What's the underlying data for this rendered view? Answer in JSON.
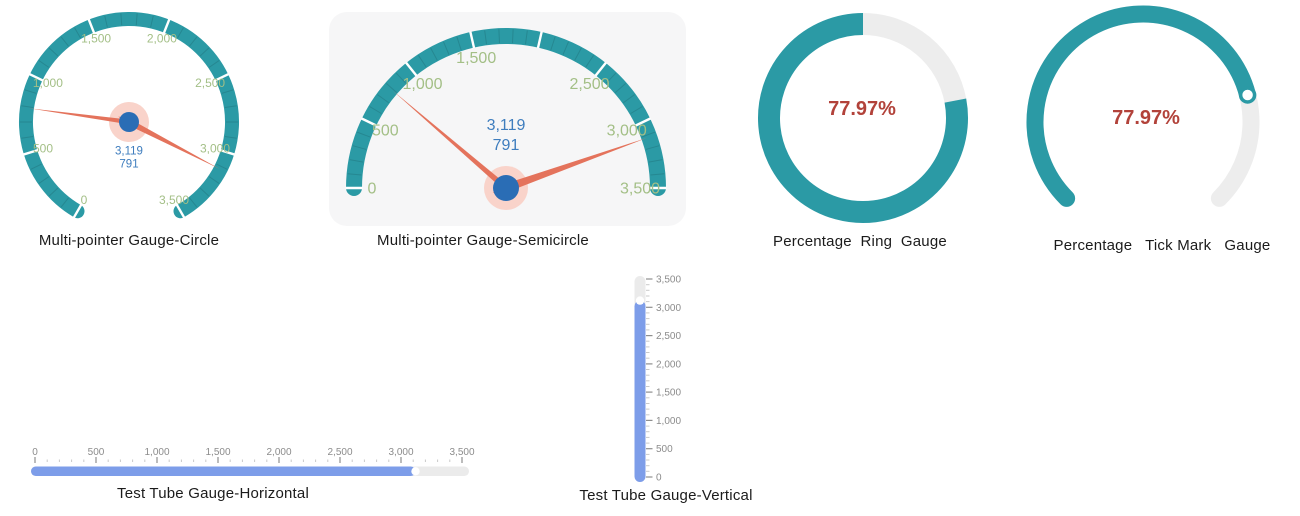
{
  "palette": {
    "teal": "#2B9AA5",
    "axis_label_green": "#A3BF86",
    "pointer_salmon": "#E4735C",
    "pointer_halo": "#F9D3CA",
    "knob_blue": "#2A6DB5",
    "value_blue": "#3E7DBE",
    "percent_red": "#B2423A",
    "tube_fill_blue": "#7D9DE9",
    "tube_track_gray": "#EBEBEB",
    "arc_rest_gray": "#EDEDED",
    "panel_gray": "#F6F6F7",
    "scale_label_gray": "#8C8C8C",
    "scale_major_tick_gray": "#8F8F8F",
    "scale_minor_tick_gray": "#C9C9C9",
    "band_split_white": "#FFFFFF",
    "title_color": "#1B1B1B"
  },
  "chart_data": [
    {
      "type": "gauge",
      "variant": "multi-pointer-circle",
      "title": "Multi-pointer Gauge-Circle",
      "min": 0,
      "max": 3500,
      "start_angle": 240,
      "end_angle": -60,
      "major_tick_step": 500,
      "minor_tick_step": 100,
      "axis_labels": [
        {
          "value": 0,
          "text": "0"
        },
        {
          "value": 500,
          "text": "500"
        },
        {
          "value": 1000,
          "text": "1,000"
        },
        {
          "value": 1500,
          "text": "1,500"
        },
        {
          "value": 2000,
          "text": "2,000"
        },
        {
          "value": 2500,
          "text": "2,500"
        },
        {
          "value": 3000,
          "text": "3,000"
        },
        {
          "value": 3500,
          "text": "3,500"
        }
      ],
      "pointer_values": [
        3119,
        791
      ],
      "center_value_lines": [
        "3,119",
        "791"
      ]
    },
    {
      "type": "gauge",
      "variant": "multi-pointer-semicircle",
      "title": "Multi-pointer Gauge-Semicircle",
      "min": 0,
      "max": 3500,
      "start_angle": 180,
      "end_angle": 0,
      "major_tick_step": 500,
      "minor_tick_step": 100,
      "axis_labels": [
        {
          "value": 0,
          "text": "0"
        },
        {
          "value": 500,
          "text": "500"
        },
        {
          "value": 1000,
          "text": "1,000"
        },
        {
          "value": 1500,
          "text": "1,500"
        },
        {
          "value": 2500,
          "text": "2,500"
        },
        {
          "value": 3000,
          "text": "3,000"
        },
        {
          "value": 3500,
          "text": "3,500"
        }
      ],
      "pointer_values": [
        3119,
        791
      ],
      "center_value_lines": [
        "3,119",
        "791"
      ]
    },
    {
      "type": "gauge",
      "variant": "percentage-ring",
      "title": "Percentage  Ring  Gauge",
      "value_percent": 77.97,
      "value_label": "77.97%",
      "remainder_percent": 22.03,
      "remainder_start": "top, clockwise"
    },
    {
      "type": "gauge",
      "variant": "percentage-tick-mark",
      "title": "Percentage   Tick Mark   Gauge",
      "value_percent": 77.97,
      "value_label": "77.97%",
      "start_angle": 225,
      "end_angle": -45,
      "marker": "white-dot-at-progress-end"
    },
    {
      "type": "gauge",
      "variant": "test-tube-horizontal",
      "title": "Test Tube Gauge-Horizontal",
      "min": 0,
      "max": 3500,
      "value": 3119,
      "major_tick_step": 500,
      "minor_tick_step": 100,
      "axis_labels": [
        {
          "value": 0,
          "text": "0"
        },
        {
          "value": 500,
          "text": "500"
        },
        {
          "value": 1000,
          "text": "1,000"
        },
        {
          "value": 1500,
          "text": "1,500"
        },
        {
          "value": 2000,
          "text": "2,000"
        },
        {
          "value": 2500,
          "text": "2,500"
        },
        {
          "value": 3000,
          "text": "3,000"
        },
        {
          "value": 3500,
          "text": "3,500"
        }
      ]
    },
    {
      "type": "gauge",
      "variant": "test-tube-vertical",
      "title": "Test Tube Gauge-Vertical",
      "min": 0,
      "max": 3500,
      "value": 3119,
      "major_tick_step": 500,
      "minor_tick_step": 100,
      "axis_labels": [
        {
          "value": 0,
          "text": "0"
        },
        {
          "value": 500,
          "text": "500"
        },
        {
          "value": 1000,
          "text": "1,000"
        },
        {
          "value": 1500,
          "text": "1,500"
        },
        {
          "value": 2000,
          "text": "2,000"
        },
        {
          "value": 2500,
          "text": "2,500"
        },
        {
          "value": 3000,
          "text": "3,000"
        },
        {
          "value": 3500,
          "text": "3,500"
        }
      ]
    }
  ]
}
